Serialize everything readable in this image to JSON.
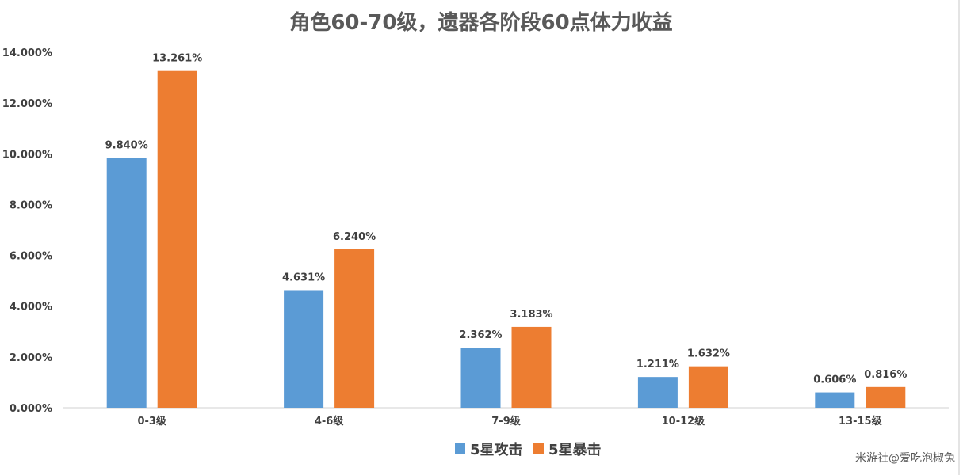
{
  "chart_data": {
    "type": "bar",
    "title": "角色60-70级，遗器各阶段60点体力收益",
    "xlabel": "",
    "ylabel": "",
    "categories": [
      "0-3级",
      "4-6级",
      "7-9级",
      "10-12级",
      "13-15级"
    ],
    "series": [
      {
        "name": "5星攻击",
        "color": "#5B9BD5",
        "values": [
          9.84,
          4.631,
          2.362,
          1.211,
          0.606
        ],
        "labels": [
          "9.840%",
          "4.631%",
          "2.362%",
          "1.211%",
          "0.606%"
        ]
      },
      {
        "name": "5星暴击",
        "color": "#ED7D31",
        "values": [
          13.261,
          6.24,
          3.183,
          1.632,
          0.816
        ],
        "labels": [
          "13.261%",
          "6.240%",
          "3.183%",
          "1.632%",
          "0.816%"
        ]
      }
    ],
    "ylim": [
      0,
      14
    ],
    "yticks": [
      0,
      2,
      4,
      6,
      8,
      10,
      12,
      14
    ],
    "ytick_labels": [
      "0.000%",
      "2.000%",
      "4.000%",
      "6.000%",
      "8.000%",
      "10.000%",
      "12.000%",
      "14.000%"
    ],
    "grid": false,
    "legend": "bottom"
  },
  "watermark": "米游社@爱吃泡椒兔"
}
